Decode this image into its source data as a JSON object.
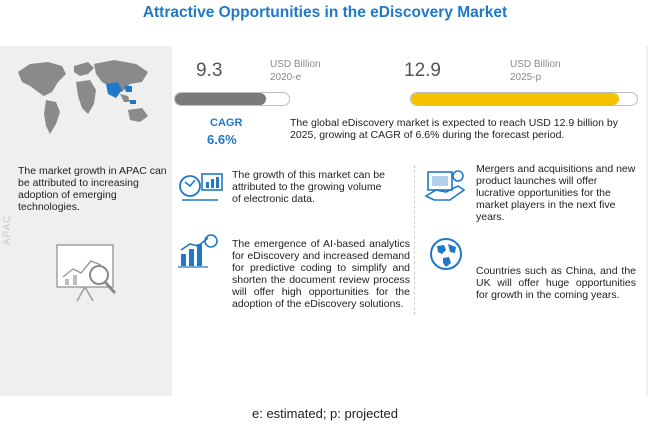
{
  "title": "Attractive Opportunities in the eDiscovery Market",
  "chart_data": {
    "type": "bar",
    "categories": [
      "2020-e",
      "2025-p"
    ],
    "values": [
      9.3,
      12.9
    ],
    "unit": "USD Billion",
    "value_labels": [
      "9.3",
      "12.9"
    ],
    "unit_labels": [
      "USD Billion",
      "USD Billion"
    ],
    "colors": [
      "#7a7a7a",
      "#f5c400"
    ],
    "cagr_label": "CAGR",
    "cagr_value": "6.6%"
  },
  "summary": "The global eDiscovery market is expected to reach USD 12.9 billion by 2025, growing at CAGR of 6.6% during the forecast period.",
  "regions": {
    "apac_text": "The market growth in APAC can be attributed to increasing adoption of emerging technologies.",
    "apac_label": "APAC"
  },
  "highlights": [
    {
      "icon": "electronic-data-icon",
      "text": "The growth of this market can be attributed to the growing volume of electronic data."
    },
    {
      "icon": "ai-analytics-icon",
      "text": "The emergence of AI-based analytics for eDiscovery and increased demand for predictive coding to simplify and shorten the document review process will offer high opportunities for the adoption of the eDiscovery solutions."
    },
    {
      "icon": "mergers-icon",
      "text": "Mergers and acquisitions and new product launches will offer lucrative opportunities for the market players in the next five years."
    },
    {
      "icon": "globe-icon",
      "text": "Countries such as China, and the UK will offer huge opportunities for growth in the coming years."
    }
  ],
  "footnote": "e: estimated; p: projected"
}
